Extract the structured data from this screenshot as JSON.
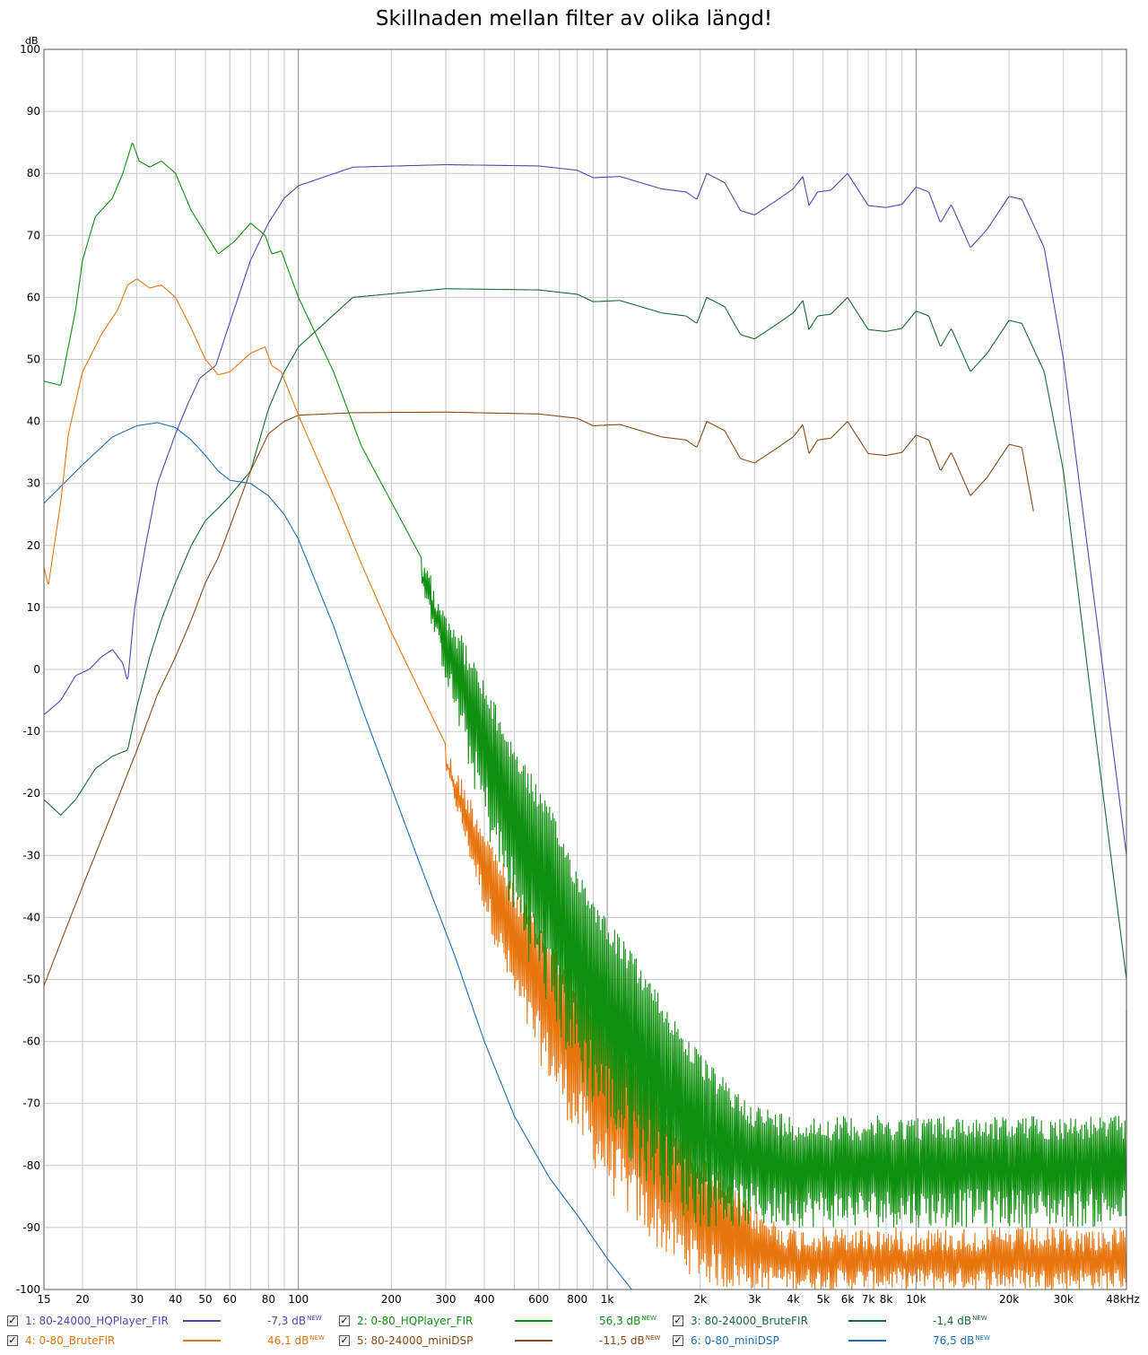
{
  "chart_data": {
    "type": "line",
    "title": "Skillnaden mellan filter av olika längd!",
    "ylabel": "dB",
    "xlabel": "",
    "x_scale": "log",
    "xlim": [
      15,
      48000
    ],
    "ylim": [
      -100,
      100
    ],
    "grid": true,
    "x_tick_labels": [
      {
        "value": 15,
        "label": "15"
      },
      {
        "value": 20,
        "label": "20"
      },
      {
        "value": 30,
        "label": "30"
      },
      {
        "value": 40,
        "label": "40"
      },
      {
        "value": 50,
        "label": "50"
      },
      {
        "value": 60,
        "label": "60"
      },
      {
        "value": 80,
        "label": "80"
      },
      {
        "value": 100,
        "label": "100"
      },
      {
        "value": 200,
        "label": "200"
      },
      {
        "value": 300,
        "label": "300"
      },
      {
        "value": 400,
        "label": "400"
      },
      {
        "value": 600,
        "label": "600"
      },
      {
        "value": 800,
        "label": "800"
      },
      {
        "value": 1000,
        "label": "1k"
      },
      {
        "value": 2000,
        "label": "2k"
      },
      {
        "value": 3000,
        "label": "3k"
      },
      {
        "value": 4000,
        "label": "4k"
      },
      {
        "value": 5000,
        "label": "5k"
      },
      {
        "value": 6000,
        "label": "6k"
      },
      {
        "value": 7000,
        "label": "7k"
      },
      {
        "value": 8000,
        "label": "8k"
      },
      {
        "value": 10000,
        "label": "10k"
      },
      {
        "value": 20000,
        "label": "20k"
      },
      {
        "value": 30000,
        "label": "30k"
      },
      {
        "value": 48000,
        "label": "48kHz"
      }
    ],
    "y_ticks": [
      100,
      90,
      80,
      70,
      60,
      50,
      40,
      30,
      20,
      10,
      0,
      -10,
      -20,
      -30,
      -40,
      -50,
      -60,
      -70,
      -80,
      -90,
      -100
    ],
    "legend_placement": "bottom",
    "series": [
      {
        "name": "1: 80-24000_HQPlayer_FIR",
        "color": "#4b4bb4",
        "legend_value": "-7,3 dB",
        "points": [
          [
            15,
            -7.3
          ],
          [
            17,
            -5
          ],
          [
            19,
            -1
          ],
          [
            21,
            0
          ],
          [
            23,
            2
          ],
          [
            25,
            3.2
          ],
          [
            27,
            1
          ],
          [
            28,
            -2
          ],
          [
            29.5,
            10
          ],
          [
            32,
            20
          ],
          [
            35,
            30
          ],
          [
            40,
            38
          ],
          [
            44,
            43
          ],
          [
            48,
            47
          ],
          [
            54,
            49
          ],
          [
            60,
            56
          ],
          [
            70,
            66
          ],
          [
            80,
            72
          ],
          [
            90,
            76
          ],
          [
            100,
            78
          ],
          [
            150,
            81
          ],
          [
            300,
            81.4
          ],
          [
            600,
            81.2
          ],
          [
            800,
            80.5
          ],
          [
            900,
            79.3
          ],
          [
            1100,
            79.5
          ],
          [
            1500,
            77.5
          ],
          [
            1800,
            77
          ],
          [
            1950,
            75.8
          ],
          [
            2100,
            80
          ],
          [
            2400,
            78.5
          ],
          [
            2700,
            74
          ],
          [
            3000,
            73.3
          ],
          [
            3500,
            75.5
          ],
          [
            4000,
            77.5
          ],
          [
            4300,
            79.5
          ],
          [
            4500,
            74.8
          ],
          [
            4800,
            77
          ],
          [
            5300,
            77.3
          ],
          [
            6000,
            80
          ],
          [
            7000,
            74.8
          ],
          [
            8000,
            74.5
          ],
          [
            9000,
            75
          ],
          [
            10000,
            77.8
          ],
          [
            11000,
            77
          ],
          [
            12000,
            72
          ],
          [
            13000,
            75
          ],
          [
            15000,
            68
          ],
          [
            17000,
            71
          ],
          [
            20000,
            76.3
          ],
          [
            22000,
            75.8
          ],
          [
            26000,
            68
          ],
          [
            30000,
            50
          ],
          [
            38000,
            10
          ],
          [
            48000,
            -30
          ]
        ]
      },
      {
        "name": "2: 0-80_HQPlayer_FIR",
        "color": "#109010",
        "legend_value": "56,3 dB",
        "points": [
          [
            15,
            46.5
          ],
          [
            17,
            45.8
          ],
          [
            19,
            58
          ],
          [
            20,
            66
          ],
          [
            22,
            73
          ],
          [
            25,
            76
          ],
          [
            27,
            80
          ],
          [
            29,
            85
          ],
          [
            30.5,
            82
          ],
          [
            33,
            81
          ],
          [
            36,
            82
          ],
          [
            40,
            80
          ],
          [
            45,
            74
          ],
          [
            55,
            67
          ],
          [
            62,
            69
          ],
          [
            70,
            72
          ],
          [
            78,
            70
          ],
          [
            82,
            67
          ],
          [
            88,
            67.5
          ],
          [
            100,
            60
          ],
          [
            130,
            48
          ],
          [
            160,
            36
          ],
          [
            200,
            27
          ],
          [
            250,
            18
          ],
          [
            320,
            8
          ],
          [
            400,
            -2
          ],
          [
            500,
            -12
          ],
          [
            650,
            -22
          ],
          [
            800,
            -32
          ],
          [
            1000,
            -40
          ],
          [
            1300,
            -48
          ],
          [
            1600,
            -55
          ],
          [
            2000,
            -62
          ],
          [
            2500,
            -67
          ],
          [
            3000,
            -70
          ],
          [
            4000,
            -72
          ],
          [
            6000,
            -72
          ],
          [
            10000,
            -72
          ],
          [
            20000,
            -72
          ],
          [
            48000,
            -72
          ]
        ],
        "noise_floor": -90,
        "noise_from": 1000
      },
      {
        "name": "3: 80-24000_BruteFIR",
        "color": "#156c35",
        "legend_value": "-1,4 dB",
        "points": [
          [
            15,
            -21
          ],
          [
            17,
            -23.5
          ],
          [
            19,
            -21
          ],
          [
            22,
            -16
          ],
          [
            25,
            -14
          ],
          [
            28,
            -13
          ],
          [
            30,
            -6
          ],
          [
            33,
            2
          ],
          [
            36,
            8
          ],
          [
            40,
            14
          ],
          [
            45,
            20
          ],
          [
            50,
            24
          ],
          [
            55,
            26
          ],
          [
            60,
            28
          ],
          [
            70,
            32
          ],
          [
            80,
            42
          ],
          [
            90,
            48
          ],
          [
            100,
            52
          ],
          [
            150,
            60
          ],
          [
            300,
            61.4
          ],
          [
            600,
            61.2
          ],
          [
            800,
            60.5
          ],
          [
            900,
            59.3
          ],
          [
            1100,
            59.5
          ],
          [
            1500,
            57.5
          ],
          [
            1800,
            57
          ],
          [
            1950,
            55.8
          ],
          [
            2100,
            60
          ],
          [
            2400,
            58.5
          ],
          [
            2700,
            54
          ],
          [
            3000,
            53.3
          ],
          [
            3500,
            55.5
          ],
          [
            4000,
            57.5
          ],
          [
            4300,
            59.5
          ],
          [
            4500,
            54.8
          ],
          [
            4800,
            57
          ],
          [
            5300,
            57.3
          ],
          [
            6000,
            60
          ],
          [
            7000,
            54.8
          ],
          [
            8000,
            54.5
          ],
          [
            9000,
            55
          ],
          [
            10000,
            57.8
          ],
          [
            11000,
            57
          ],
          [
            12000,
            52
          ],
          [
            13000,
            55
          ],
          [
            15000,
            48
          ],
          [
            17000,
            51
          ],
          [
            20000,
            56.3
          ],
          [
            22000,
            55.8
          ],
          [
            26000,
            48
          ],
          [
            30000,
            32
          ],
          [
            38000,
            -10
          ],
          [
            48000,
            -50
          ]
        ]
      },
      {
        "name": "4: 0-80_BruteFIR",
        "color": "#e8760f",
        "legend_value": "46,1 dB",
        "points": [
          [
            15,
            16.5
          ],
          [
            15.5,
            13.5
          ],
          [
            17,
            27
          ],
          [
            18,
            38
          ],
          [
            20,
            48
          ],
          [
            23,
            54
          ],
          [
            26,
            58
          ],
          [
            28,
            62
          ],
          [
            30,
            63
          ],
          [
            33,
            61.5
          ],
          [
            36,
            62
          ],
          [
            40,
            60
          ],
          [
            45,
            55
          ],
          [
            50,
            50
          ],
          [
            55,
            47.5
          ],
          [
            60,
            48
          ],
          [
            70,
            51
          ],
          [
            78,
            52
          ],
          [
            82,
            49
          ],
          [
            88,
            48
          ],
          [
            100,
            41
          ],
          [
            130,
            28
          ],
          [
            160,
            17
          ],
          [
            200,
            6
          ],
          [
            250,
            -4
          ],
          [
            320,
            -15
          ],
          [
            400,
            -25
          ],
          [
            500,
            -35
          ],
          [
            650,
            -43
          ],
          [
            800,
            -50
          ],
          [
            1000,
            -57
          ],
          [
            1300,
            -65
          ],
          [
            1600,
            -72
          ],
          [
            2000,
            -78
          ],
          [
            2500,
            -83
          ],
          [
            3000,
            -87
          ],
          [
            4000,
            -90
          ],
          [
            6000,
            -90
          ],
          [
            10000,
            -90
          ],
          [
            20000,
            -90
          ],
          [
            48000,
            -90
          ]
        ],
        "noise_floor": -100,
        "noise_from": 1200
      },
      {
        "name": "5: 80-24000_miniDSP",
        "color": "#8b4a14",
        "legend_value": "-11,5 dB",
        "points": [
          [
            15,
            -51
          ],
          [
            17,
            -44
          ],
          [
            20,
            -35
          ],
          [
            25,
            -23
          ],
          [
            30,
            -13
          ],
          [
            35,
            -4
          ],
          [
            40,
            2
          ],
          [
            45,
            8
          ],
          [
            50,
            14
          ],
          [
            55,
            18
          ],
          [
            60,
            23
          ],
          [
            70,
            32
          ],
          [
            80,
            38
          ],
          [
            90,
            40
          ],
          [
            100,
            41
          ],
          [
            150,
            41.4
          ],
          [
            300,
            41.5
          ],
          [
            600,
            41.2
          ],
          [
            800,
            40.5
          ],
          [
            900,
            39.3
          ],
          [
            1100,
            39.5
          ],
          [
            1500,
            37.5
          ],
          [
            1800,
            37
          ],
          [
            1950,
            35.8
          ],
          [
            2100,
            40
          ],
          [
            2400,
            38.5
          ],
          [
            2700,
            34
          ],
          [
            3000,
            33.3
          ],
          [
            3500,
            35.5
          ],
          [
            4000,
            37.5
          ],
          [
            4300,
            39.5
          ],
          [
            4500,
            34.8
          ],
          [
            4800,
            37
          ],
          [
            5300,
            37.3
          ],
          [
            6000,
            40
          ],
          [
            7000,
            34.8
          ],
          [
            8000,
            34.5
          ],
          [
            9000,
            35
          ],
          [
            10000,
            37.8
          ],
          [
            11000,
            37
          ],
          [
            12000,
            32
          ],
          [
            13000,
            35
          ],
          [
            15000,
            28
          ],
          [
            17000,
            31
          ],
          [
            20000,
            36.3
          ],
          [
            22000,
            35.8
          ],
          [
            24000,
            25.5
          ]
        ]
      },
      {
        "name": "6: 0-80_miniDSP",
        "color": "#1a6fb8",
        "legend_value": "76,5 dB",
        "points": [
          [
            15,
            26.8
          ],
          [
            20,
            33
          ],
          [
            25,
            37.5
          ],
          [
            30,
            39.3
          ],
          [
            35,
            39.8
          ],
          [
            40,
            39
          ],
          [
            45,
            37
          ],
          [
            50,
            34.5
          ],
          [
            55,
            32
          ],
          [
            60,
            30.5
          ],
          [
            70,
            30
          ],
          [
            80,
            28
          ],
          [
            90,
            25
          ],
          [
            100,
            21
          ],
          [
            130,
            7
          ],
          [
            160,
            -6
          ],
          [
            200,
            -19
          ],
          [
            250,
            -32
          ],
          [
            320,
            -46
          ],
          [
            400,
            -60
          ],
          [
            500,
            -72
          ],
          [
            650,
            -82
          ],
          [
            800,
            -88
          ],
          [
            1000,
            -95
          ],
          [
            1200,
            -100
          ]
        ]
      }
    ]
  },
  "legend": [
    {
      "check": "✓",
      "label": "1: 80-24000_HQPlayer_FIR",
      "value": "-7,3 dB",
      "badge": "NEW",
      "color": "#4b4bb4"
    },
    {
      "check": "✓",
      "label": "2: 0-80_HQPlayer_FIR",
      "value": "56,3 dB",
      "badge": "NEW",
      "color": "#109010"
    },
    {
      "check": "✓",
      "label": "3: 80-24000_BruteFIR",
      "value": "-1,4 dB",
      "badge": "NEW",
      "color": "#156c35"
    },
    {
      "check": "✓",
      "label": "4: 0-80_BruteFIR",
      "value": "46,1 dB",
      "badge": "NEW",
      "color": "#e8760f"
    },
    {
      "check": "✓",
      "label": "5: 80-24000_miniDSP",
      "value": "-11,5 dB",
      "badge": "NEW",
      "color": "#8b4a14"
    },
    {
      "check": "✓",
      "label": "6: 0-80_miniDSP",
      "value": "76,5 dB",
      "badge": "NEW",
      "color": "#1a6fb8"
    }
  ]
}
